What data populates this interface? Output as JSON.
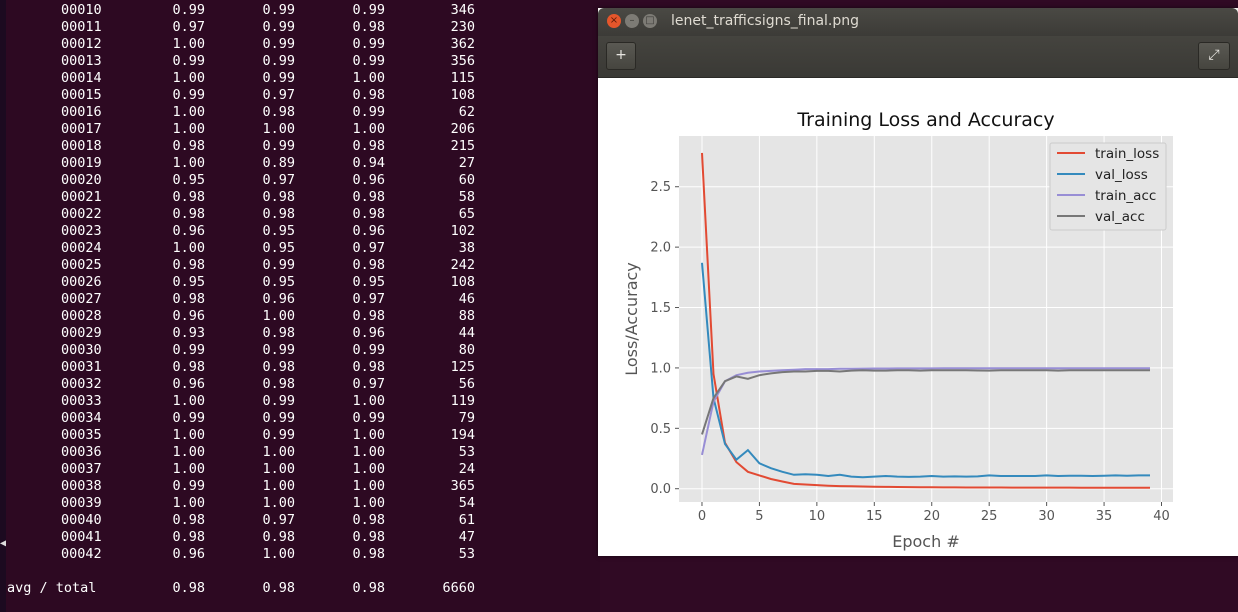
{
  "terminal": {
    "rows": [
      {
        "cls": "00010",
        "precision": "0.99",
        "recall": "0.99",
        "f1": "0.99",
        "support": "346"
      },
      {
        "cls": "00011",
        "precision": "0.97",
        "recall": "0.99",
        "f1": "0.98",
        "support": "230"
      },
      {
        "cls": "00012",
        "precision": "1.00",
        "recall": "0.99",
        "f1": "0.99",
        "support": "362"
      },
      {
        "cls": "00013",
        "precision": "0.99",
        "recall": "0.99",
        "f1": "0.99",
        "support": "356"
      },
      {
        "cls": "00014",
        "precision": "1.00",
        "recall": "0.99",
        "f1": "1.00",
        "support": "115"
      },
      {
        "cls": "00015",
        "precision": "0.99",
        "recall": "0.97",
        "f1": "0.98",
        "support": "108"
      },
      {
        "cls": "00016",
        "precision": "1.00",
        "recall": "0.98",
        "f1": "0.99",
        "support": "62"
      },
      {
        "cls": "00017",
        "precision": "1.00",
        "recall": "1.00",
        "f1": "1.00",
        "support": "206"
      },
      {
        "cls": "00018",
        "precision": "0.98",
        "recall": "0.99",
        "f1": "0.98",
        "support": "215"
      },
      {
        "cls": "00019",
        "precision": "1.00",
        "recall": "0.89",
        "f1": "0.94",
        "support": "27"
      },
      {
        "cls": "00020",
        "precision": "0.95",
        "recall": "0.97",
        "f1": "0.96",
        "support": "60"
      },
      {
        "cls": "00021",
        "precision": "0.98",
        "recall": "0.98",
        "f1": "0.98",
        "support": "58"
      },
      {
        "cls": "00022",
        "precision": "0.98",
        "recall": "0.98",
        "f1": "0.98",
        "support": "65"
      },
      {
        "cls": "00023",
        "precision": "0.96",
        "recall": "0.95",
        "f1": "0.96",
        "support": "102"
      },
      {
        "cls": "00024",
        "precision": "1.00",
        "recall": "0.95",
        "f1": "0.97",
        "support": "38"
      },
      {
        "cls": "00025",
        "precision": "0.98",
        "recall": "0.99",
        "f1": "0.98",
        "support": "242"
      },
      {
        "cls": "00026",
        "precision": "0.95",
        "recall": "0.95",
        "f1": "0.95",
        "support": "108"
      },
      {
        "cls": "00027",
        "precision": "0.98",
        "recall": "0.96",
        "f1": "0.97",
        "support": "46"
      },
      {
        "cls": "00028",
        "precision": "0.96",
        "recall": "1.00",
        "f1": "0.98",
        "support": "88"
      },
      {
        "cls": "00029",
        "precision": "0.93",
        "recall": "0.98",
        "f1": "0.96",
        "support": "44"
      },
      {
        "cls": "00030",
        "precision": "0.99",
        "recall": "0.99",
        "f1": "0.99",
        "support": "80"
      },
      {
        "cls": "00031",
        "precision": "0.98",
        "recall": "0.98",
        "f1": "0.98",
        "support": "125"
      },
      {
        "cls": "00032",
        "precision": "0.96",
        "recall": "0.98",
        "f1": "0.97",
        "support": "56"
      },
      {
        "cls": "00033",
        "precision": "1.00",
        "recall": "0.99",
        "f1": "1.00",
        "support": "119"
      },
      {
        "cls": "00034",
        "precision": "0.99",
        "recall": "0.99",
        "f1": "0.99",
        "support": "79"
      },
      {
        "cls": "00035",
        "precision": "1.00",
        "recall": "0.99",
        "f1": "1.00",
        "support": "194"
      },
      {
        "cls": "00036",
        "precision": "1.00",
        "recall": "1.00",
        "f1": "1.00",
        "support": "53"
      },
      {
        "cls": "00037",
        "precision": "1.00",
        "recall": "1.00",
        "f1": "1.00",
        "support": "24"
      },
      {
        "cls": "00038",
        "precision": "0.99",
        "recall": "1.00",
        "f1": "1.00",
        "support": "365"
      },
      {
        "cls": "00039",
        "precision": "1.00",
        "recall": "1.00",
        "f1": "1.00",
        "support": "54"
      },
      {
        "cls": "00040",
        "precision": "0.98",
        "recall": "0.97",
        "f1": "0.98",
        "support": "61"
      },
      {
        "cls": "00041",
        "precision": "0.98",
        "recall": "0.98",
        "f1": "0.98",
        "support": "47"
      },
      {
        "cls": "00042",
        "precision": "0.96",
        "recall": "1.00",
        "f1": "0.98",
        "support": "53"
      }
    ],
    "total": {
      "label": "avg / total",
      "precision": "0.98",
      "recall": "0.98",
      "f1": "0.98",
      "support": "6660"
    }
  },
  "viewer": {
    "window_title": "lenet_trafficsigns_final.png",
    "close_glyph": "×",
    "minimize_glyph": "–",
    "maximize_glyph": "□",
    "add_button_glyph": "+",
    "fullscreen_glyph": "⤢"
  },
  "colors": {
    "train_loss": "#e24a33",
    "val_loss": "#348abd",
    "train_acc": "#988ed5",
    "val_acc": "#777777"
  },
  "chart_data": {
    "type": "line",
    "title": "Training Loss and Accuracy",
    "xlabel": "Epoch #",
    "ylabel": "Loss/Accuracy",
    "xlim": [
      -2,
      41
    ],
    "ylim": [
      -0.11,
      2.92
    ],
    "xticks": [
      "0",
      "5",
      "10",
      "15",
      "20",
      "25",
      "30",
      "35",
      "40"
    ],
    "yticks": [
      "0.0",
      "0.5",
      "1.0",
      "1.5",
      "2.0",
      "2.5"
    ],
    "grid": true,
    "legend_position": "top-right",
    "x": [
      0,
      1,
      2,
      3,
      4,
      5,
      6,
      7,
      8,
      9,
      10,
      11,
      12,
      13,
      14,
      15,
      16,
      17,
      18,
      19,
      20,
      21,
      22,
      23,
      24,
      25,
      26,
      27,
      28,
      29,
      30,
      31,
      32,
      33,
      34,
      35,
      36,
      37,
      38,
      39
    ],
    "series": [
      {
        "name": "train_loss",
        "values": [
          2.78,
          0.95,
          0.38,
          0.22,
          0.14,
          0.11,
          0.08,
          0.06,
          0.04,
          0.035,
          0.03,
          0.025,
          0.022,
          0.02,
          0.018,
          0.016,
          0.015,
          0.014,
          0.013,
          0.012,
          0.012,
          0.011,
          0.011,
          0.01,
          0.01,
          0.01,
          0.01,
          0.009,
          0.009,
          0.009,
          0.009,
          0.009,
          0.009,
          0.008,
          0.008,
          0.008,
          0.008,
          0.008,
          0.008,
          0.008
        ]
      },
      {
        "name": "val_loss",
        "values": [
          1.87,
          0.75,
          0.37,
          0.24,
          0.32,
          0.21,
          0.17,
          0.14,
          0.115,
          0.12,
          0.115,
          0.105,
          0.115,
          0.1,
          0.095,
          0.1,
          0.105,
          0.1,
          0.098,
          0.1,
          0.105,
          0.1,
          0.102,
          0.1,
          0.102,
          0.11,
          0.105,
          0.105,
          0.105,
          0.105,
          0.11,
          0.105,
          0.108,
          0.108,
          0.105,
          0.108,
          0.11,
          0.108,
          0.11,
          0.11
        ]
      },
      {
        "name": "train_acc",
        "values": [
          0.28,
          0.72,
          0.89,
          0.94,
          0.96,
          0.97,
          0.975,
          0.98,
          0.985,
          0.99,
          0.99,
          0.99,
          0.993,
          0.993,
          0.994,
          0.995,
          0.995,
          0.996,
          0.996,
          0.996,
          0.996,
          0.997,
          0.997,
          0.997,
          0.997,
          0.997,
          0.997,
          0.997,
          0.997,
          0.998,
          0.998,
          0.998,
          0.998,
          0.998,
          0.998,
          0.998,
          0.998,
          0.998,
          0.998,
          0.998
        ]
      },
      {
        "name": "val_acc",
        "values": [
          0.45,
          0.75,
          0.89,
          0.93,
          0.91,
          0.94,
          0.955,
          0.965,
          0.97,
          0.97,
          0.975,
          0.975,
          0.97,
          0.978,
          0.98,
          0.978,
          0.978,
          0.98,
          0.98,
          0.978,
          0.98,
          0.98,
          0.98,
          0.98,
          0.979,
          0.978,
          0.98,
          0.98,
          0.98,
          0.98,
          0.98,
          0.978,
          0.98,
          0.98,
          0.98,
          0.98,
          0.98,
          0.98,
          0.98,
          0.98
        ]
      }
    ]
  }
}
